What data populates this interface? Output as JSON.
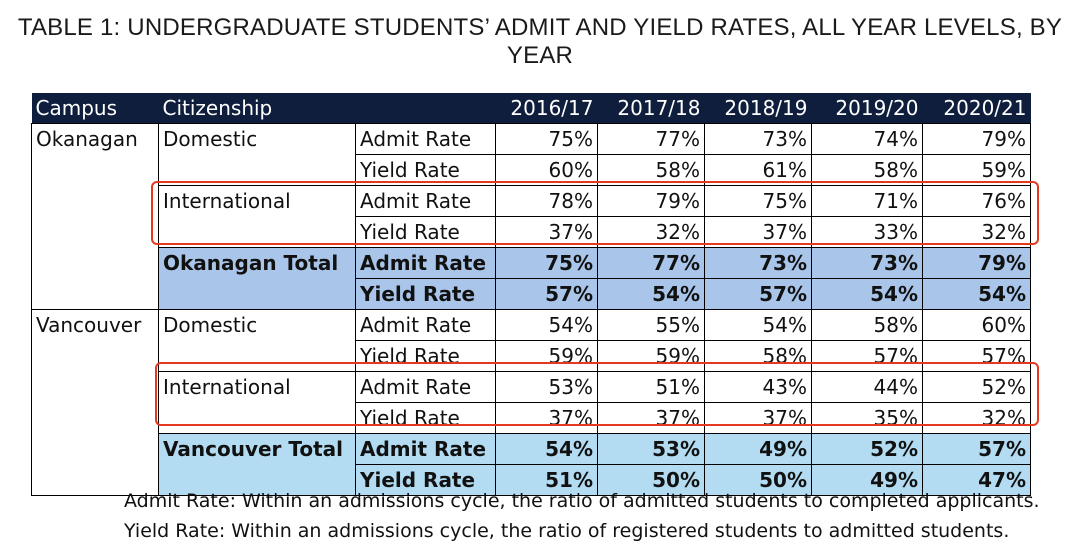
{
  "title": "TABLE 1: UNDERGRADUATE STUDENTS’ ADMIT AND YIELD RATES, ALL YEAR LEVELS, BY YEAR",
  "headers": {
    "campus": "Campus",
    "citizenship": "Citizenship",
    "years": [
      "2016/17",
      "2017/18",
      "2018/19",
      "2019/20",
      "2020/21"
    ]
  },
  "rows": [
    {
      "campus": "Okanagan",
      "citizenship": "Domestic",
      "metric": "Admit Rate",
      "values": [
        "75%",
        "77%",
        "73%",
        "74%",
        "79%"
      ]
    },
    {
      "campus": "",
      "citizenship": "",
      "metric": "Yield Rate",
      "values": [
        "60%",
        "58%",
        "61%",
        "58%",
        "59%"
      ]
    },
    {
      "campus": "",
      "citizenship": "International",
      "metric": "Admit Rate",
      "values": [
        "78%",
        "79%",
        "75%",
        "71%",
        "76%"
      ]
    },
    {
      "campus": "",
      "citizenship": "",
      "metric": "Yield Rate",
      "values": [
        "37%",
        "32%",
        "37%",
        "33%",
        "32%"
      ]
    },
    {
      "campus": "",
      "citizenship": "Okanagan Total",
      "metric": "Admit Rate",
      "values": [
        "75%",
        "77%",
        "73%",
        "73%",
        "79%"
      ]
    },
    {
      "campus": "",
      "citizenship": "",
      "metric": "Yield Rate",
      "values": [
        "57%",
        "54%",
        "57%",
        "54%",
        "54%"
      ]
    },
    {
      "campus": "Vancouver",
      "citizenship": "Domestic",
      "metric": "Admit Rate",
      "values": [
        "54%",
        "55%",
        "54%",
        "58%",
        "60%"
      ]
    },
    {
      "campus": "",
      "citizenship": "",
      "metric": "Yield Rate",
      "values": [
        "59%",
        "59%",
        "58%",
        "57%",
        "57%"
      ]
    },
    {
      "campus": "",
      "citizenship": "International",
      "metric": "Admit Rate",
      "values": [
        "53%",
        "51%",
        "43%",
        "44%",
        "52%"
      ]
    },
    {
      "campus": "",
      "citizenship": "",
      "metric": "Yield Rate",
      "values": [
        "37%",
        "37%",
        "37%",
        "35%",
        "32%"
      ]
    },
    {
      "campus": "",
      "citizenship": "Vancouver Total",
      "metric": "Admit Rate",
      "values": [
        "54%",
        "53%",
        "49%",
        "52%",
        "57%"
      ]
    },
    {
      "campus": "",
      "citizenship": "",
      "metric": "Yield Rate",
      "values": [
        "51%",
        "50%",
        "50%",
        "49%",
        "47%"
      ]
    }
  ],
  "notes": [
    "Admit Rate: Within an admissions cycle, the ratio of admitted students to completed applicants.",
    "Yield Rate: Within an admissions cycle, the ratio of registered students to admitted students."
  ],
  "colors": {
    "header_bg": "#0f1e3c",
    "okanagan_total_bg": "#a9c6ea",
    "vancouver_total_bg": "#b3dcf3",
    "highlight_border": "#e5391f"
  }
}
